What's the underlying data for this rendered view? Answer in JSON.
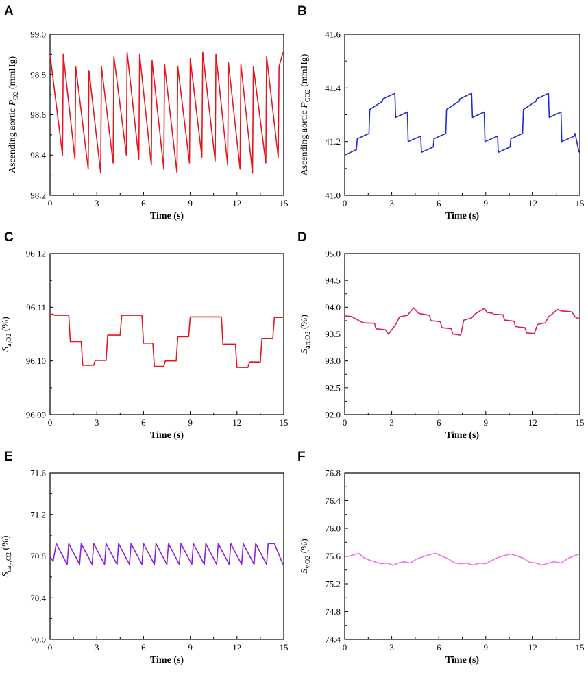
{
  "chart_data": [
    {
      "panel": "A",
      "type": "line",
      "color": "#e8141c",
      "xlabel": "Time (s)",
      "ylabel": {
        "prefix": "Ascending aortic ",
        "main": "P",
        "sub": "O2",
        "suffix": " (mmHg)"
      },
      "xlim": [
        0,
        15
      ],
      "ylim": [
        98.2,
        99.0
      ],
      "xticks": [
        "0",
        "3",
        "6",
        "9",
        "12",
        "15"
      ],
      "yticks": [
        "98.2",
        "98.4",
        "98.6",
        "98.8",
        "99.0"
      ],
      "ytick_values": [
        98.2,
        98.4,
        98.6,
        98.8,
        99.0
      ],
      "series": [
        {
          "name": "Ascending aortic PO2",
          "x": [
            0,
            0.8,
            0.85,
            1.6,
            1.65,
            2.45,
            2.5,
            3.25,
            3.3,
            4.05,
            4.1,
            4.9,
            4.95,
            5.7,
            5.75,
            6.5,
            6.55,
            7.3,
            7.35,
            8.15,
            8.2,
            8.95,
            9.0,
            9.75,
            9.8,
            10.6,
            10.65,
            11.4,
            11.45,
            12.2,
            12.25,
            13.0,
            13.05,
            13.85,
            13.9,
            14.65,
            14.7,
            14.95
          ],
          "values": [
            98.9,
            98.4,
            98.9,
            98.38,
            98.84,
            98.33,
            98.82,
            98.31,
            98.84,
            98.36,
            98.89,
            98.4,
            98.91,
            98.38,
            98.9,
            98.35,
            98.87,
            98.33,
            98.85,
            98.31,
            98.84,
            98.36,
            98.88,
            98.39,
            98.91,
            98.37,
            98.9,
            98.35,
            98.86,
            98.33,
            98.85,
            98.31,
            98.84,
            98.36,
            98.89,
            98.39,
            98.84,
            98.91
          ]
        }
      ]
    },
    {
      "panel": "B",
      "type": "line",
      "color": "#1f2bd1",
      "xlabel": "Time (s)",
      "ylabel": {
        "prefix": "Ascending aortic ",
        "main": "P",
        "sub": "CO2",
        "suffix": " (mmHg)"
      },
      "xlim": [
        0,
        15
      ],
      "ylim": [
        41.0,
        41.6
      ],
      "xticks": [
        "0",
        "3",
        "6",
        "9",
        "12",
        "15"
      ],
      "yticks": [
        "41.0",
        "41.2",
        "41.4",
        "41.6"
      ],
      "ytick_values": [
        41.0,
        41.2,
        41.4,
        41.6
      ],
      "series": [
        {
          "name": "Ascending aortic PCO2",
          "x": [
            0,
            0.75,
            0.8,
            1.55,
            1.6,
            2.4,
            2.45,
            3.2,
            3.25,
            4.0,
            4.05,
            4.85,
            4.9,
            5.65,
            5.7,
            6.45,
            6.5,
            7.3,
            7.35,
            8.1,
            8.15,
            8.9,
            8.95,
            9.75,
            9.8,
            10.55,
            10.6,
            11.35,
            11.4,
            12.2,
            12.25,
            13.0,
            13.05,
            13.8,
            13.85,
            14.65,
            14.7,
            14.95
          ],
          "values": [
            41.15,
            41.17,
            41.21,
            41.23,
            41.32,
            41.35,
            41.36,
            41.38,
            41.29,
            41.31,
            41.2,
            41.22,
            41.16,
            41.18,
            41.21,
            41.23,
            41.32,
            41.35,
            41.36,
            41.38,
            41.29,
            41.31,
            41.2,
            41.22,
            41.16,
            41.18,
            41.21,
            41.23,
            41.32,
            41.35,
            41.36,
            41.38,
            41.29,
            41.31,
            41.2,
            41.22,
            41.23,
            41.16
          ]
        }
      ]
    },
    {
      "panel": "C",
      "type": "line",
      "color": "#e8141c",
      "xlabel": "Time (s)",
      "ylabel": {
        "prefix": "",
        "main": "S",
        "sub": "a,O2",
        "suffix": " (%)"
      },
      "xlim": [
        0,
        15
      ],
      "ylim": [
        96.09,
        96.12
      ],
      "xticks": [
        "0",
        "3",
        "6",
        "9",
        "12",
        "15"
      ],
      "yticks": [
        "96.09",
        "96.10",
        "96.11",
        "96.12"
      ],
      "ytick_values": [
        96.09,
        96.1,
        96.11,
        96.12
      ],
      "series": [
        {
          "name": "Sa,O2",
          "x": [
            0,
            0.2,
            0.3,
            1.2,
            1.3,
            2.0,
            2.1,
            2.8,
            2.9,
            3.6,
            3.7,
            4.5,
            4.6,
            5.9,
            6.0,
            6.6,
            6.7,
            7.3,
            7.4,
            8.1,
            8.2,
            8.9,
            9.0,
            9.7,
            9.8,
            11.0,
            11.1,
            11.9,
            12.0,
            12.7,
            12.8,
            13.5,
            13.6,
            14.3,
            14.4,
            14.95
          ],
          "values": [
            96.1087,
            96.1087,
            96.1085,
            96.1085,
            96.1036,
            96.1036,
            96.0992,
            96.0992,
            96.1001,
            96.1001,
            96.1048,
            96.1048,
            96.1085,
            96.1085,
            96.1033,
            96.1033,
            96.099,
            96.099,
            96.1,
            96.1,
            96.1045,
            96.1045,
            96.1082,
            96.1082,
            96.1082,
            96.1082,
            96.1031,
            96.1031,
            96.0988,
            96.0988,
            96.0998,
            96.0998,
            96.1042,
            96.1042,
            96.1081,
            96.1081
          ]
        }
      ]
    },
    {
      "panel": "D",
      "type": "line",
      "color": "#e0186c",
      "xlabel": "Time (s)",
      "ylabel": {
        "prefix": "",
        "main": "S",
        "sub": "art,O2",
        "suffix": " (%)"
      },
      "xlim": [
        0,
        15
      ],
      "ylim": [
        92.0,
        95.0
      ],
      "xticks": [
        "0",
        "3",
        "6",
        "9",
        "12",
        "15"
      ],
      "yticks": [
        "92.0",
        "92.5",
        "93.0",
        "93.5",
        "94.0",
        "94.5",
        "95.0"
      ],
      "ytick_values": [
        92.0,
        92.5,
        93.0,
        93.5,
        94.0,
        94.5,
        95.0
      ],
      "series": [
        {
          "name": "Sart,O2",
          "x": [
            0,
            0.4,
            0.6,
            1.1,
            1.2,
            1.9,
            2.0,
            2.6,
            2.8,
            3.3,
            3.5,
            4.0,
            4.4,
            4.7,
            4.8,
            5.4,
            5.5,
            6.1,
            6.2,
            6.8,
            6.9,
            7.4,
            7.6,
            8.1,
            8.3,
            8.9,
            9.1,
            9.4,
            9.5,
            10.1,
            10.2,
            10.8,
            10.9,
            11.5,
            11.6,
            12.1,
            12.3,
            12.8,
            13.0,
            13.6,
            13.8,
            14.3,
            14.5,
            14.7,
            14.8,
            14.95
          ],
          "values": [
            93.84,
            93.83,
            93.8,
            93.72,
            93.71,
            93.7,
            93.6,
            93.58,
            93.5,
            93.7,
            93.82,
            93.85,
            93.99,
            93.89,
            93.88,
            93.85,
            93.75,
            93.73,
            93.62,
            93.6,
            93.5,
            93.48,
            93.76,
            93.8,
            93.87,
            93.98,
            93.9,
            93.89,
            93.87,
            93.86,
            93.76,
            93.74,
            93.64,
            93.62,
            93.52,
            93.51,
            93.68,
            93.71,
            93.82,
            93.96,
            93.93,
            93.92,
            93.91,
            93.82,
            93.8,
            93.8
          ]
        }
      ]
    },
    {
      "panel": "E",
      "type": "line",
      "color": "#8a1fe0",
      "xlabel": "Time (s)",
      "ylabel": {
        "prefix": "",
        "main": "S",
        "sub": "cap,O2",
        "suffix": " (%)"
      },
      "xlim": [
        0,
        15
      ],
      "ylim": [
        70.0,
        71.6
      ],
      "xticks": [
        "0",
        "3",
        "6",
        "9",
        "12",
        "15"
      ],
      "yticks": [
        "70.0",
        "70.4",
        "70.8",
        "71.2",
        "71.6"
      ],
      "ytick_values": [
        70.0,
        70.4,
        70.8,
        71.2,
        71.6
      ],
      "series": [
        {
          "name": "Scap,O2",
          "x": [
            0,
            0.2,
            0.4,
            1.1,
            1.2,
            1.9,
            2.0,
            2.7,
            2.8,
            3.5,
            3.6,
            4.3,
            4.4,
            5.1,
            5.2,
            5.9,
            6.0,
            6.7,
            6.8,
            7.5,
            7.6,
            8.3,
            8.4,
            9.1,
            9.2,
            9.9,
            10.0,
            10.7,
            10.8,
            11.5,
            11.6,
            12.3,
            12.4,
            13.1,
            13.2,
            13.9,
            14.0,
            14.4,
            14.95
          ],
          "values": [
            70.8,
            70.75,
            70.92,
            70.72,
            70.92,
            70.72,
            70.92,
            70.72,
            70.92,
            70.72,
            70.92,
            70.72,
            70.92,
            70.72,
            70.92,
            70.72,
            70.92,
            70.72,
            70.92,
            70.72,
            70.92,
            70.72,
            70.92,
            70.72,
            70.92,
            70.72,
            70.92,
            70.72,
            70.92,
            70.72,
            70.92,
            70.72,
            70.92,
            70.72,
            70.92,
            70.72,
            70.92,
            70.92,
            70.72
          ]
        }
      ]
    },
    {
      "panel": "F",
      "type": "line",
      "color": "#f06ef0",
      "xlabel": "Time (s)",
      "ylabel": {
        "prefix": "",
        "main": "S",
        "sub": "v,O2",
        "suffix": " (%)"
      },
      "xlim": [
        0,
        15
      ],
      "ylim": [
        74.4,
        76.8
      ],
      "xticks": [
        "0",
        "3",
        "6",
        "9",
        "12",
        "15"
      ],
      "yticks": [
        "74.4",
        "74.8",
        "75.2",
        "75.6",
        "76.0",
        "76.4",
        "76.8"
      ],
      "ytick_values": [
        74.4,
        74.8,
        75.2,
        75.6,
        76.0,
        76.4,
        76.8
      ],
      "series": [
        {
          "name": "Sv,O2",
          "x": [
            0,
            0.3,
            0.6,
            0.9,
            1.2,
            1.5,
            1.9,
            2.3,
            2.7,
            3.1,
            3.4,
            3.8,
            4.2,
            4.6,
            5.0,
            5.4,
            5.8,
            6.2,
            6.6,
            7.0,
            7.4,
            7.8,
            8.2,
            8.6,
            9.0,
            9.4,
            9.8,
            10.2,
            10.6,
            11.0,
            11.4,
            11.8,
            12.2,
            12.6,
            13.0,
            13.4,
            13.8,
            14.2,
            14.6,
            14.95
          ],
          "values": [
            75.59,
            75.6,
            75.62,
            75.64,
            75.58,
            75.55,
            75.52,
            75.49,
            75.5,
            75.47,
            75.5,
            75.52,
            75.5,
            75.56,
            75.59,
            75.62,
            75.64,
            75.6,
            75.56,
            75.5,
            75.49,
            75.5,
            75.47,
            75.5,
            75.49,
            75.54,
            75.58,
            75.61,
            75.63,
            75.6,
            75.57,
            75.51,
            75.5,
            75.47,
            75.5,
            75.52,
            75.5,
            75.56,
            75.6,
            75.63
          ]
        }
      ]
    }
  ]
}
